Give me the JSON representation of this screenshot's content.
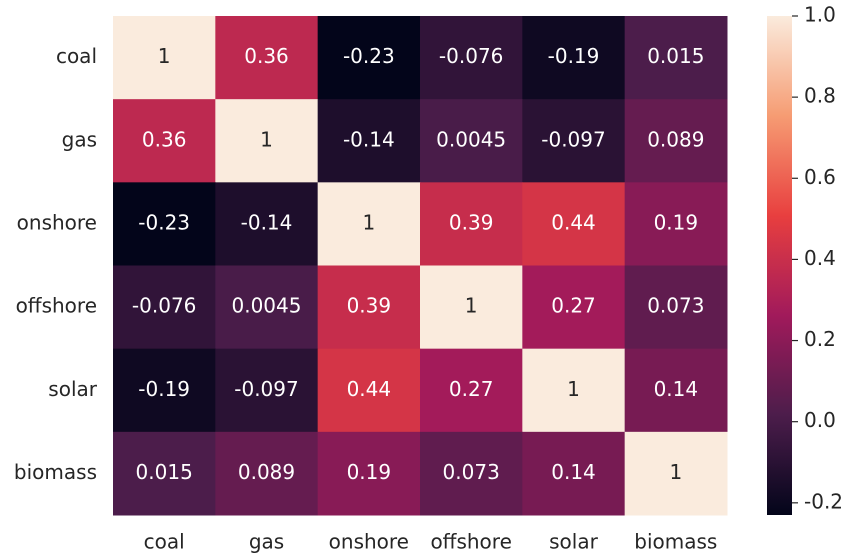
{
  "chart_data": {
    "type": "heatmap",
    "x_categories": [
      "coal",
      "gas",
      "onshore",
      "offshore",
      "solar",
      "biomass"
    ],
    "y_categories": [
      "coal",
      "gas",
      "onshore",
      "offshore",
      "solar",
      "biomass"
    ],
    "values": [
      [
        1,
        0.36,
        -0.23,
        -0.076,
        -0.19,
        0.015
      ],
      [
        0.36,
        1,
        -0.14,
        0.0045,
        -0.097,
        0.089
      ],
      [
        -0.23,
        -0.14,
        1,
        0.39,
        0.44,
        0.19
      ],
      [
        -0.076,
        0.0045,
        0.39,
        1,
        0.27,
        0.073
      ],
      [
        -0.19,
        -0.097,
        0.44,
        0.27,
        1,
        0.14
      ],
      [
        0.015,
        0.089,
        0.19,
        0.073,
        0.14,
        1
      ]
    ],
    "colors": [
      "#03051a",
      "#4c1d4b",
      "#a11a5b",
      "#e83f3f",
      "#f69c73",
      "#faebdd"
    ],
    "zlim": [
      -0.23,
      1
    ],
    "zticks": [
      -0.2,
      {
        "value": 0,
        "label": "0.0"
      },
      0.2,
      0.4,
      0.6,
      0.8,
      {
        "value": 1,
        "label": "1.0"
      }
    ]
  }
}
